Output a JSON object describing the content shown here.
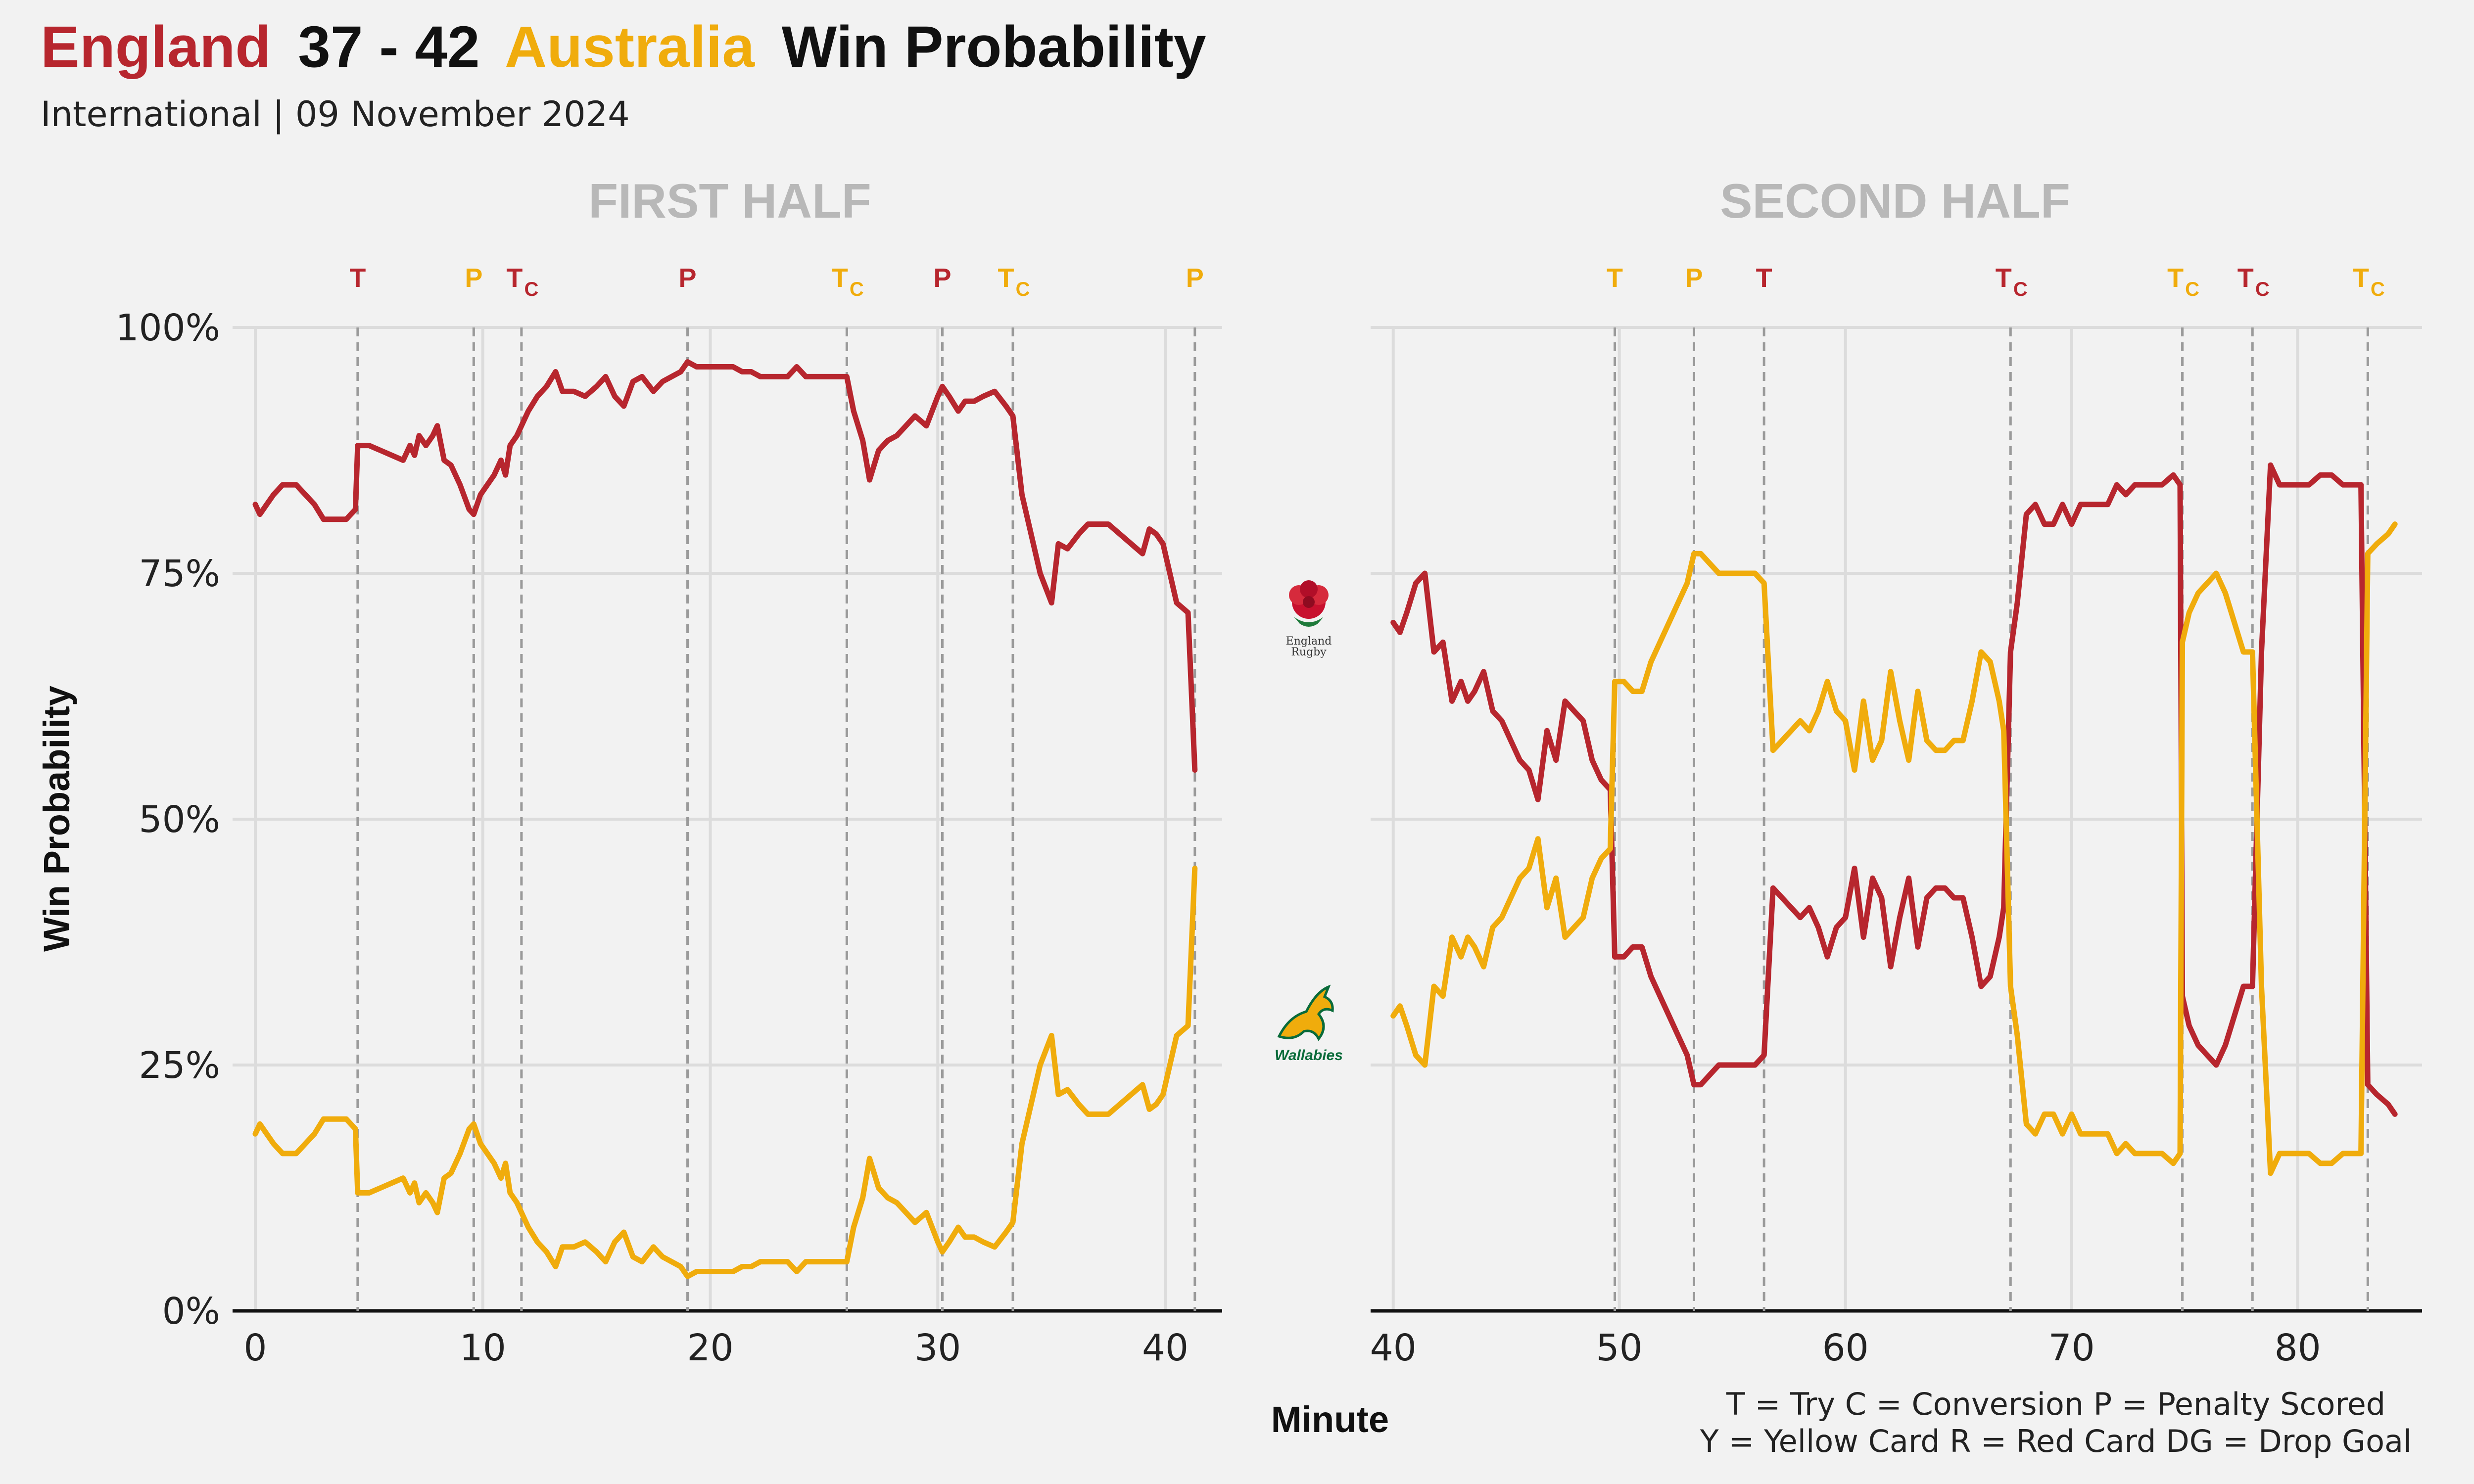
{
  "header": {
    "home_team": "England",
    "score": "37 - 42",
    "away_team": "Australia",
    "suffix": "Win Probability",
    "subtitle": "International | 09 November 2024"
  },
  "colors": {
    "home": "#b7262e",
    "away": "#f0ac0c",
    "grid": "#dcdcdc",
    "vline": "#9a9a9a"
  },
  "logos": {
    "home_icon": "england-rose-icon",
    "home_text_1": "England",
    "home_text_2": "Rugby",
    "away_icon": "wallabies-icon",
    "away_text": "Wallabies"
  },
  "legend": {
    "line1": "T = Try     C = Conversion     P = Penalty Scored",
    "line2": "Y = Yellow Card     R = Red Card     DG = Drop Goal"
  },
  "chart_data": [
    {
      "type": "line",
      "panel": "FIRST HALF",
      "title": "FIRST HALF",
      "xlabel": "",
      "ylabel": "Win Probability",
      "xlim": [
        -1,
        42.5
      ],
      "ylim": [
        0,
        100
      ],
      "xticks": [
        0,
        10,
        20,
        30,
        40
      ],
      "yticks": [
        0,
        25,
        50,
        75,
        100
      ],
      "ytick_labels": [
        "0%",
        "25%",
        "50%",
        "75%",
        "100%"
      ],
      "events": [
        {
          "minute": 4.5,
          "label": "T",
          "sub": "",
          "team": "home"
        },
        {
          "minute": 9.6,
          "label": "P",
          "sub": "",
          "team": "away"
        },
        {
          "minute": 11.7,
          "label": "T",
          "sub": "C",
          "team": "home"
        },
        {
          "minute": 19.0,
          "label": "P",
          "sub": "",
          "team": "home"
        },
        {
          "minute": 26.0,
          "label": "T",
          "sub": "C",
          "team": "away"
        },
        {
          "minute": 30.2,
          "label": "P",
          "sub": "",
          "team": "home"
        },
        {
          "minute": 33.3,
          "label": "T",
          "sub": "C",
          "team": "away"
        },
        {
          "minute": 41.3,
          "label": "P",
          "sub": "",
          "team": "away"
        }
      ],
      "series": [
        {
          "name": "England",
          "team": "home",
          "x": [
            0,
            0.2,
            0.5,
            0.8,
            1.2,
            1.5,
            1.8,
            2.2,
            2.6,
            3.0,
            3.5,
            4.0,
            4.4,
            4.5,
            5.0,
            5.5,
            6.0,
            6.5,
            6.8,
            7.0,
            7.2,
            7.5,
            7.8,
            8.0,
            8.3,
            8.6,
            9.0,
            9.4,
            9.6,
            9.9,
            10.2,
            10.5,
            10.8,
            11.0,
            11.2,
            11.5,
            11.7,
            12.0,
            12.4,
            12.8,
            13.2,
            13.5,
            14.0,
            14.5,
            15.0,
            15.4,
            15.8,
            16.2,
            16.6,
            17.0,
            17.5,
            17.9,
            18.3,
            18.7,
            19.0,
            19.4,
            19.8,
            20.2,
            20.6,
            21.0,
            21.4,
            21.8,
            22.2,
            22.6,
            23.0,
            23.4,
            23.8,
            24.2,
            24.6,
            25.0,
            25.4,
            25.8,
            26.0,
            26.3,
            26.7,
            27.0,
            27.4,
            27.8,
            28.2,
            28.6,
            29.0,
            29.5,
            30.0,
            30.2,
            30.5,
            30.9,
            31.2,
            31.6,
            32.0,
            32.5,
            33.0,
            33.3,
            33.7,
            34.0,
            34.5,
            35.0,
            35.3,
            35.7,
            36.2,
            36.6,
            37.0,
            37.5,
            38.0,
            38.5,
            39.0,
            39.3,
            39.6,
            39.9,
            40.2,
            40.5,
            41.0,
            41.3
          ],
          "values": [
            82,
            81,
            82,
            83,
            84,
            84,
            84,
            83,
            82,
            80.5,
            80.5,
            80.5,
            81.5,
            88,
            88,
            87.5,
            87,
            86.5,
            88,
            87,
            89,
            88,
            89,
            90,
            86.5,
            86,
            84,
            81.5,
            81,
            83,
            84,
            85,
            86.5,
            85,
            88,
            89,
            90,
            91.5,
            93,
            94,
            95.5,
            93.5,
            93.5,
            93,
            94,
            95,
            93,
            92,
            94.5,
            95,
            93.5,
            94.5,
            95,
            95.5,
            96.5,
            96,
            96,
            96,
            96,
            96,
            95.5,
            95.5,
            95,
            95,
            95,
            95,
            96,
            95,
            95,
            95,
            95,
            95,
            95,
            91.5,
            88.5,
            84.5,
            87.5,
            88.5,
            89,
            90,
            91,
            90,
            93,
            94,
            93,
            91.5,
            92.5,
            92.5,
            93,
            93.5,
            92,
            91,
            83,
            80,
            75,
            72,
            78,
            77.5,
            79,
            80,
            80,
            80,
            79,
            78,
            77,
            79.5,
            79,
            78,
            75,
            72,
            71,
            55
          ]
        },
        {
          "name": "Australia",
          "team": "away",
          "x": [
            0,
            0.2,
            0.5,
            0.8,
            1.2,
            1.5,
            1.8,
            2.2,
            2.6,
            3.0,
            3.5,
            4.0,
            4.4,
            4.5,
            5.0,
            5.5,
            6.0,
            6.5,
            6.8,
            7.0,
            7.2,
            7.5,
            7.8,
            8.0,
            8.3,
            8.6,
            9.0,
            9.4,
            9.6,
            9.9,
            10.2,
            10.5,
            10.8,
            11.0,
            11.2,
            11.5,
            11.7,
            12.0,
            12.4,
            12.8,
            13.2,
            13.5,
            14.0,
            14.5,
            15.0,
            15.4,
            15.8,
            16.2,
            16.6,
            17.0,
            17.5,
            17.9,
            18.3,
            18.7,
            19.0,
            19.4,
            19.8,
            20.2,
            20.6,
            21.0,
            21.4,
            21.8,
            22.2,
            22.6,
            23.0,
            23.4,
            23.8,
            24.2,
            24.6,
            25.0,
            25.4,
            25.8,
            26.0,
            26.3,
            26.7,
            27.0,
            27.4,
            27.8,
            28.2,
            28.6,
            29.0,
            29.5,
            30.0,
            30.2,
            30.5,
            30.9,
            31.2,
            31.6,
            32.0,
            32.5,
            33.0,
            33.3,
            33.7,
            34.0,
            34.5,
            35.0,
            35.3,
            35.7,
            36.2,
            36.6,
            37.0,
            37.5,
            38.0,
            38.5,
            39.0,
            39.3,
            39.6,
            39.9,
            40.2,
            40.5,
            41.0,
            41.3
          ],
          "values": [
            18,
            19,
            18,
            17,
            16,
            16,
            16,
            17,
            18,
            19.5,
            19.5,
            19.5,
            18.5,
            12,
            12,
            12.5,
            13,
            13.5,
            12,
            13,
            11,
            12,
            11,
            10,
            13.5,
            14,
            16,
            18.5,
            19,
            17,
            16,
            15,
            13.5,
            15,
            12,
            11,
            10,
            8.5,
            7,
            6,
            4.5,
            6.5,
            6.5,
            7,
            6,
            5,
            7,
            8,
            5.5,
            5,
            6.5,
            5.5,
            5,
            4.5,
            3.5,
            4,
            4,
            4,
            4,
            4,
            4.5,
            4.5,
            5,
            5,
            5,
            5,
            4,
            5,
            5,
            5,
            5,
            5,
            5,
            8.5,
            11.5,
            15.5,
            12.5,
            11.5,
            11,
            10,
            9,
            10,
            7,
            6,
            7,
            8.5,
            7.5,
            7.5,
            7,
            6.5,
            8,
            9,
            17,
            20,
            25,
            28,
            22,
            22.5,
            21,
            20,
            20,
            20,
            21,
            22,
            23,
            20.5,
            21,
            22,
            25,
            28,
            29,
            45
          ]
        }
      ]
    },
    {
      "type": "line",
      "panel": "SECOND HALF",
      "title": "SECOND HALF",
      "xlabel": "Minute",
      "ylabel": "",
      "xlim": [
        39,
        85.5
      ],
      "ylim": [
        0,
        100
      ],
      "xticks": [
        40,
        50,
        60,
        70,
        80
      ],
      "yticks": [
        0,
        25,
        50,
        75,
        100
      ],
      "events": [
        {
          "minute": 49.8,
          "label": "T",
          "sub": "",
          "team": "away"
        },
        {
          "minute": 53.3,
          "label": "P",
          "sub": "",
          "team": "away"
        },
        {
          "minute": 56.4,
          "label": "T",
          "sub": "",
          "team": "home"
        },
        {
          "minute": 67.3,
          "label": "T",
          "sub": "C",
          "team": "home"
        },
        {
          "minute": 74.9,
          "label": "T",
          "sub": "C",
          "team": "away"
        },
        {
          "minute": 78.0,
          "label": "T",
          "sub": "C",
          "team": "home"
        },
        {
          "minute": 83.1,
          "label": "T",
          "sub": "C",
          "team": "away"
        }
      ],
      "series": [
        {
          "name": "England",
          "team": "home",
          "x": [
            40,
            40.3,
            40.6,
            41.0,
            41.4,
            41.8,
            42.2,
            42.6,
            43.0,
            43.3,
            43.6,
            44.0,
            44.4,
            44.8,
            45.2,
            45.6,
            46.0,
            46.4,
            46.8,
            47.2,
            47.6,
            48.0,
            48.4,
            48.8,
            49.2,
            49.6,
            49.8,
            50.2,
            50.6,
            51.0,
            51.4,
            51.8,
            52.2,
            52.6,
            53.0,
            53.3,
            53.6,
            54.0,
            54.4,
            54.8,
            55.2,
            55.6,
            56.0,
            56.4,
            56.8,
            57.2,
            57.6,
            58.0,
            58.4,
            58.8,
            59.2,
            59.6,
            60.0,
            60.4,
            60.8,
            61.2,
            61.6,
            62.0,
            62.4,
            62.8,
            63.2,
            63.6,
            64.0,
            64.4,
            64.8,
            65.2,
            65.6,
            66.0,
            66.4,
            66.8,
            67.0,
            67.3,
            67.6,
            68.0,
            68.4,
            68.8,
            69.2,
            69.6,
            70.0,
            70.4,
            70.8,
            71.2,
            71.6,
            72.0,
            72.4,
            72.8,
            73.2,
            73.6,
            74.0,
            74.5,
            74.8,
            74.9,
            75.2,
            75.6,
            76.0,
            76.4,
            76.8,
            77.2,
            77.6,
            78.0,
            78.4,
            78.8,
            79.2,
            79.6,
            80.0,
            80.5,
            81.0,
            81.5,
            82.0,
            82.4,
            82.8,
            83.1,
            83.5,
            84.0,
            84.3
          ],
          "values": [
            70,
            69,
            71,
            74,
            75,
            67,
            68,
            62,
            64,
            62,
            63,
            65,
            61,
            60,
            58,
            56,
            55,
            52,
            59,
            56,
            62,
            61,
            60,
            56,
            54,
            53,
            36,
            36,
            37,
            37,
            34,
            32,
            30,
            28,
            26,
            23,
            23,
            24,
            25,
            25,
            25,
            25,
            25,
            26,
            43,
            42,
            41,
            40,
            41,
            39,
            36,
            39,
            40,
            45,
            38,
            44,
            42,
            35,
            40,
            44,
            37,
            42,
            43,
            43,
            42,
            42,
            38,
            33,
            34,
            38,
            41,
            67,
            72,
            81,
            82,
            80,
            80,
            82,
            80,
            82,
            82,
            82,
            82,
            84,
            83,
            84,
            84,
            84,
            84,
            85,
            84,
            32,
            29,
            27,
            26,
            25,
            27,
            30,
            33,
            33,
            67,
            86,
            84,
            84,
            84,
            84,
            85,
            85,
            84,
            84,
            84,
            23,
            22,
            21,
            20
          ]
        },
        {
          "name": "Australia",
          "team": "away",
          "x": [
            40,
            40.3,
            40.6,
            41.0,
            41.4,
            41.8,
            42.2,
            42.6,
            43.0,
            43.3,
            43.6,
            44.0,
            44.4,
            44.8,
            45.2,
            45.6,
            46.0,
            46.4,
            46.8,
            47.2,
            47.6,
            48.0,
            48.4,
            48.8,
            49.2,
            49.6,
            49.8,
            50.2,
            50.6,
            51.0,
            51.4,
            51.8,
            52.2,
            52.6,
            53.0,
            53.3,
            53.6,
            54.0,
            54.4,
            54.8,
            55.2,
            55.6,
            56.0,
            56.4,
            56.8,
            57.2,
            57.6,
            58.0,
            58.4,
            58.8,
            59.2,
            59.6,
            60.0,
            60.4,
            60.8,
            61.2,
            61.6,
            62.0,
            62.4,
            62.8,
            63.2,
            63.6,
            64.0,
            64.4,
            64.8,
            65.2,
            65.6,
            66.0,
            66.4,
            66.8,
            67.0,
            67.3,
            67.6,
            68.0,
            68.4,
            68.8,
            69.2,
            69.6,
            70.0,
            70.4,
            70.8,
            71.2,
            71.6,
            72.0,
            72.4,
            72.8,
            73.2,
            73.6,
            74.0,
            74.5,
            74.8,
            74.9,
            75.2,
            75.6,
            76.0,
            76.4,
            76.8,
            77.2,
            77.6,
            78.0,
            78.4,
            78.8,
            79.2,
            79.6,
            80.0,
            80.5,
            81.0,
            81.5,
            82.0,
            82.4,
            82.8,
            83.1,
            83.5,
            84.0,
            84.3
          ],
          "values": [
            30,
            31,
            29,
            26,
            25,
            33,
            32,
            38,
            36,
            38,
            37,
            35,
            39,
            40,
            42,
            44,
            45,
            48,
            41,
            44,
            38,
            39,
            40,
            44,
            46,
            47,
            64,
            64,
            63,
            63,
            66,
            68,
            70,
            72,
            74,
            77,
            77,
            76,
            75,
            75,
            75,
            75,
            75,
            74,
            57,
            58,
            59,
            60,
            59,
            61,
            64,
            61,
            60,
            55,
            62,
            56,
            58,
            65,
            60,
            56,
            63,
            58,
            57,
            57,
            58,
            58,
            62,
            67,
            66,
            62,
            59,
            33,
            28,
            19,
            18,
            20,
            20,
            18,
            20,
            18,
            18,
            18,
            18,
            16,
            17,
            16,
            16,
            16,
            16,
            15,
            16,
            68,
            71,
            73,
            74,
            75,
            73,
            70,
            67,
            67,
            33,
            14,
            16,
            16,
            16,
            16,
            15,
            15,
            16,
            16,
            16,
            77,
            78,
            79,
            80
          ]
        }
      ]
    }
  ]
}
